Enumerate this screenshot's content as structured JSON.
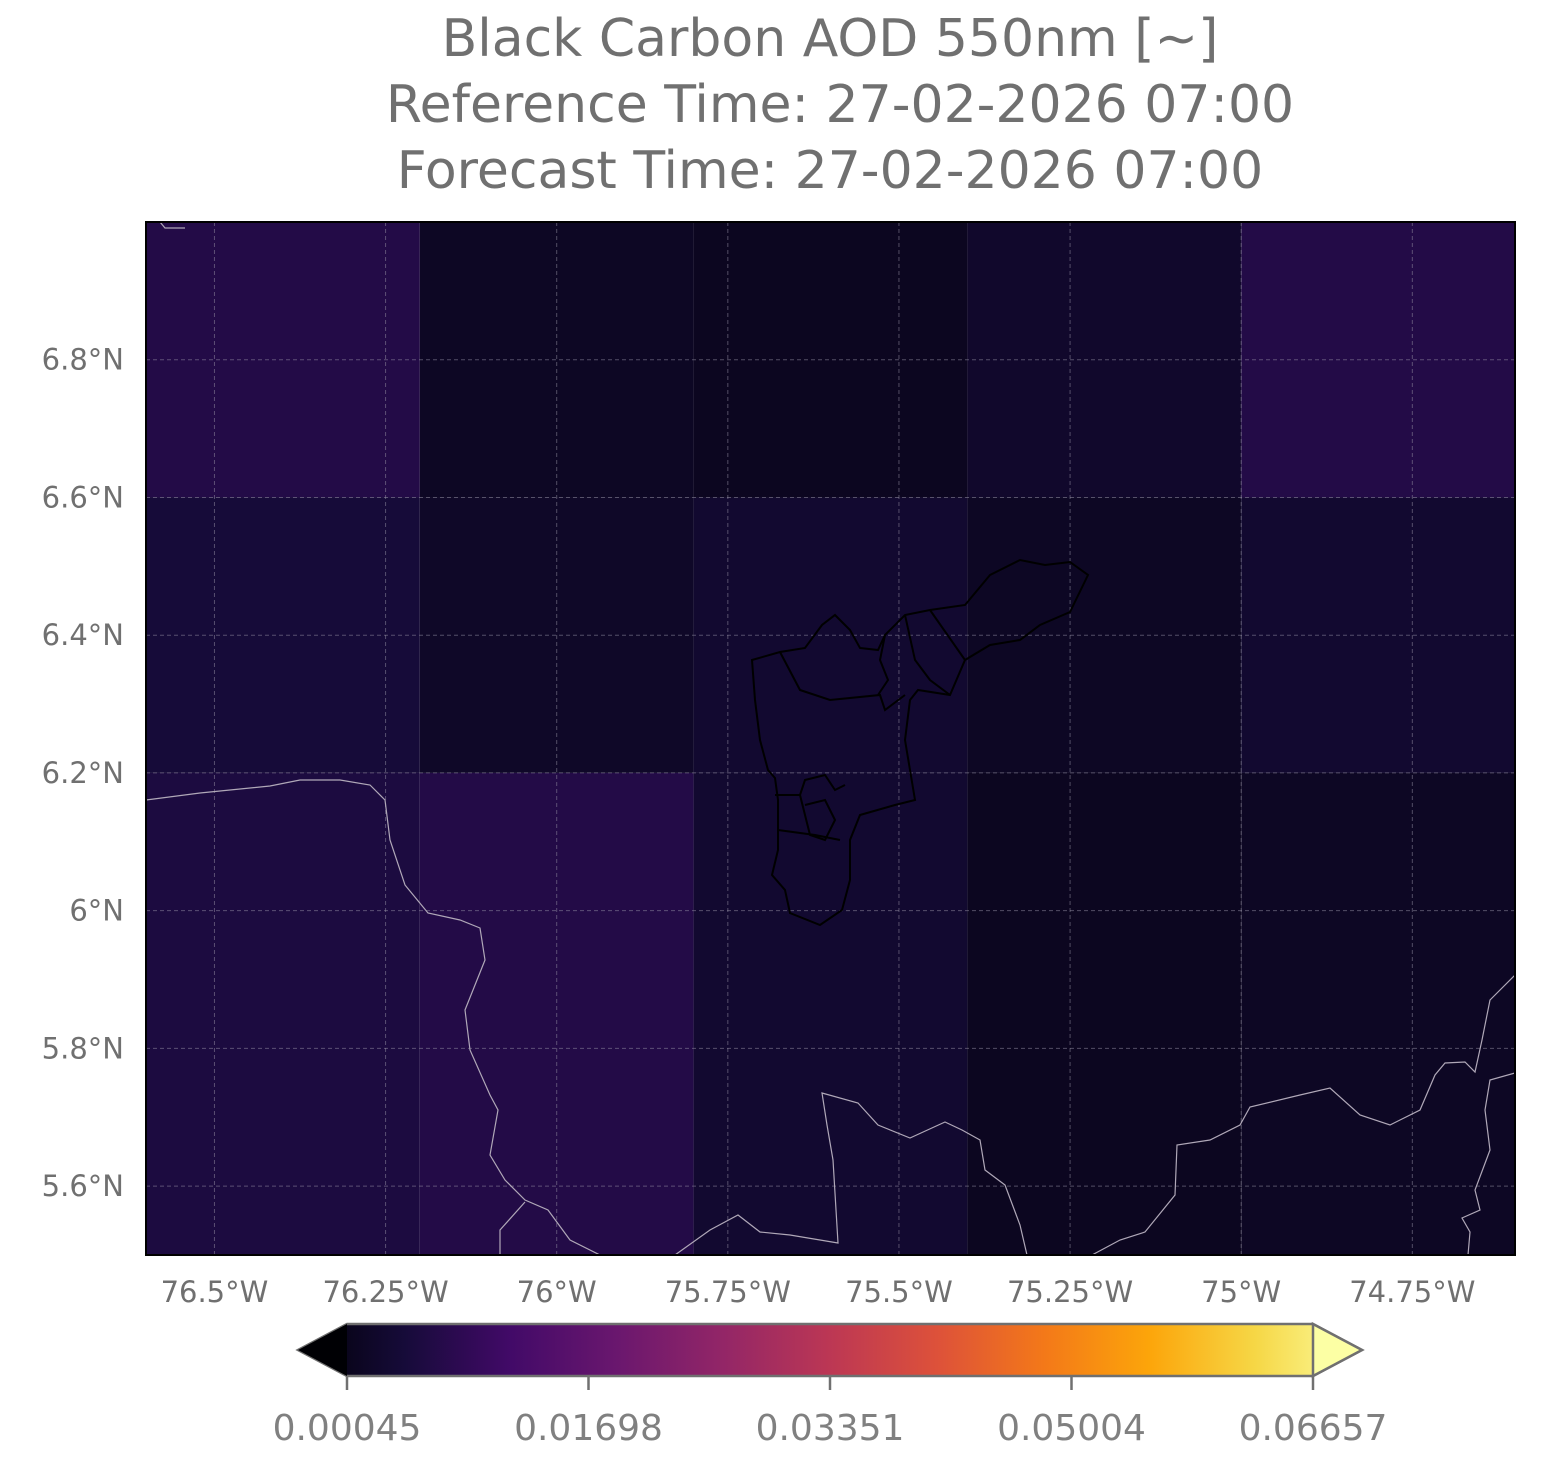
{
  "chart_data": {
    "type": "map",
    "title_lines": [
      "Black Carbon AOD 550nm [~]",
      "Reference Time: 27-02-2026 07:00",
      "Forecast Time: 27-02-2026 07:00"
    ],
    "colormap": "inferno",
    "xlim": [
      -76.6,
      -74.6
    ],
    "ylim": [
      5.5,
      7.0
    ],
    "xticks": [
      {
        "value": -76.5,
        "label": "76.5°W"
      },
      {
        "value": -76.25,
        "label": "76.25°W"
      },
      {
        "value": -76.0,
        "label": "76°W"
      },
      {
        "value": -75.75,
        "label": "75.75°W"
      },
      {
        "value": -75.5,
        "label": "75.5°W"
      },
      {
        "value": -75.25,
        "label": "75.25°W"
      },
      {
        "value": -75.0,
        "label": "75°W"
      },
      {
        "value": -74.75,
        "label": "74.75°W"
      }
    ],
    "yticks": [
      {
        "value": 5.6,
        "label": "5.6°N"
      },
      {
        "value": 5.8,
        "label": "5.8°N"
      },
      {
        "value": 6.0,
        "label": "6°N"
      },
      {
        "value": 6.2,
        "label": "6.2°N"
      },
      {
        "value": 6.4,
        "label": "6.4°N"
      },
      {
        "value": 6.6,
        "label": "6.6°N"
      },
      {
        "value": 6.8,
        "label": "6.8°N"
      }
    ],
    "grid": true,
    "cells": {
      "lon_edges": [
        -76.6,
        -76.2,
        -75.8,
        -75.4,
        -75.0,
        -74.6
      ],
      "lat_edges": [
        7.0,
        6.6,
        6.2,
        5.5
      ],
      "values": [
        [
          0.009,
          0.0045,
          0.004,
          0.0055,
          0.009
        ],
        [
          0.007,
          0.005,
          0.006,
          0.0045,
          0.006
        ],
        [
          0.008,
          0.009,
          0.006,
          0.004,
          0.0045
        ]
      ]
    },
    "colorbar": {
      "lim": [
        0.00045,
        0.06657
      ],
      "ticks": [
        0.00045,
        0.01698,
        0.03351,
        0.05004,
        0.06657
      ]
    }
  }
}
